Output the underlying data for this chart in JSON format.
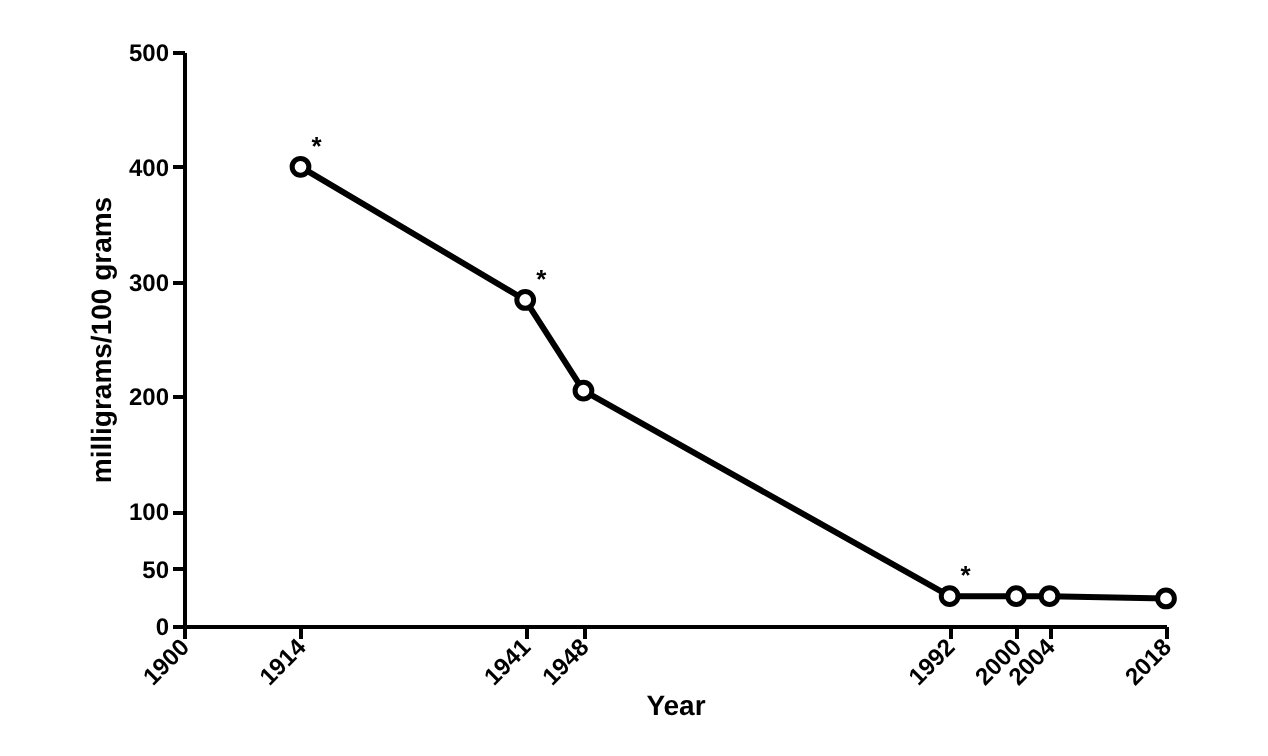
{
  "chart_data": {
    "type": "line",
    "xlabel": "Year",
    "ylabel": "milligrams/100 grams",
    "x": [
      1914,
      1941,
      1948,
      1992,
      2000,
      2004,
      2018
    ],
    "series": [
      {
        "color": "#000000",
        "values": [
          400,
          284,
          205,
          26,
          26,
          26,
          24
        ]
      }
    ],
    "xlim": [
      1900,
      2018
    ],
    "xticks": [
      1900,
      1914,
      1941,
      1948,
      1992,
      2000,
      2004,
      2018
    ],
    "ylim": [
      0,
      500
    ],
    "yticks": [
      0,
      50,
      100,
      200,
      300,
      400,
      500
    ],
    "marker": "circle",
    "line_style": "solid",
    "grid": false,
    "legend": false,
    "annotations": [
      {
        "text": "*",
        "x": 1914,
        "y": 400
      },
      {
        "text": "*",
        "x": 1941,
        "y": 284
      },
      {
        "text": "*",
        "x": 1992,
        "y": 26
      }
    ]
  }
}
